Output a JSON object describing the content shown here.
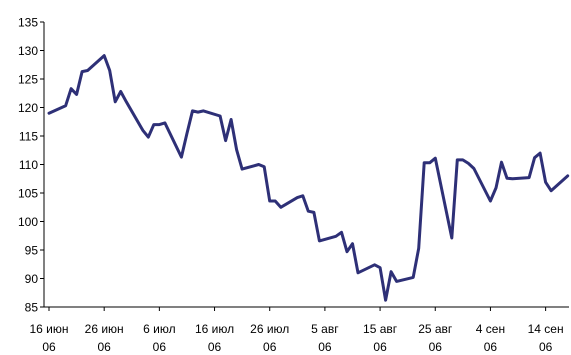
{
  "chart_data": {
    "type": "line",
    "title": "",
    "xlabel": "",
    "ylabel": "",
    "ylim": [
      85,
      135
    ],
    "y_ticks": [
      85,
      90,
      95,
      100,
      105,
      110,
      115,
      120,
      125,
      130,
      135
    ],
    "x_ticks": [
      {
        "date": "2006-06-16",
        "label": [
          "16 июн",
          "06"
        ]
      },
      {
        "date": "2006-06-26",
        "label": [
          "26 июн",
          "06"
        ]
      },
      {
        "date": "2006-07-06",
        "label": [
          "6 июл",
          "06"
        ]
      },
      {
        "date": "2006-07-16",
        "label": [
          "16 июл",
          "06"
        ]
      },
      {
        "date": "2006-07-26",
        "label": [
          "26 июл",
          "06"
        ]
      },
      {
        "date": "2006-08-05",
        "label": [
          "5 авг",
          "06"
        ]
      },
      {
        "date": "2006-08-15",
        "label": [
          "15 авг",
          "06"
        ]
      },
      {
        "date": "2006-08-25",
        "label": [
          "25 авг",
          "06"
        ]
      },
      {
        "date": "2006-09-04",
        "label": [
          "4 сен",
          "06"
        ]
      },
      {
        "date": "2006-09-14",
        "label": [
          "14 сен",
          "06"
        ]
      }
    ],
    "grid": false,
    "legend": "none",
    "color": "#2e3077",
    "series": [
      {
        "x": [
          "2006-06-16",
          "2006-06-19",
          "2006-06-20",
          "2006-06-21",
          "2006-06-22",
          "2006-06-23",
          "2006-06-26",
          "2006-06-27",
          "2006-06-28",
          "2006-06-29",
          "2006-06-30",
          "2006-07-03",
          "2006-07-04",
          "2006-07-05",
          "2006-07-06",
          "2006-07-07",
          "2006-07-10",
          "2006-07-11",
          "2006-07-12",
          "2006-07-13",
          "2006-07-14",
          "2006-07-17",
          "2006-07-18",
          "2006-07-19",
          "2006-07-20",
          "2006-07-21",
          "2006-07-24",
          "2006-07-25",
          "2006-07-26",
          "2006-07-27",
          "2006-07-28",
          "2006-07-31",
          "2006-08-01",
          "2006-08-02",
          "2006-08-03",
          "2006-08-04",
          "2006-08-07",
          "2006-08-08",
          "2006-08-09",
          "2006-08-10",
          "2006-08-11",
          "2006-08-14",
          "2006-08-15",
          "2006-08-16",
          "2006-08-17",
          "2006-08-18",
          "2006-08-21",
          "2006-08-22",
          "2006-08-23",
          "2006-08-24",
          "2006-08-25",
          "2006-08-28",
          "2006-08-29",
          "2006-08-30",
          "2006-08-31",
          "2006-09-01",
          "2006-09-04",
          "2006-09-05",
          "2006-09-06",
          "2006-09-07",
          "2006-09-08",
          "2006-09-11",
          "2006-09-12",
          "2006-09-13",
          "2006-09-14",
          "2006-09-15",
          "2006-09-18"
        ],
        "values": [
          119.0,
          120.3,
          123.3,
          122.3,
          126.3,
          126.5,
          129.1,
          126.5,
          121.0,
          122.8,
          121.0,
          116.0,
          114.8,
          117.0,
          117.0,
          117.3,
          111.3,
          115.4,
          119.4,
          119.2,
          119.4,
          118.5,
          114.2,
          117.9,
          112.6,
          109.2,
          110.0,
          109.6,
          103.6,
          103.6,
          102.5,
          104.2,
          104.5,
          101.8,
          101.6,
          96.6,
          97.4,
          98.1,
          94.7,
          96.1,
          91.0,
          92.4,
          91.9,
          86.2,
          91.2,
          89.5,
          90.2,
          95.3,
          110.3,
          110.3,
          111.1,
          97.1,
          110.8,
          110.8,
          110.2,
          109.3,
          103.6,
          105.9,
          110.4,
          107.6,
          107.5,
          107.7,
          111.2,
          112.0,
          106.9,
          105.4,
          108.0
        ]
      }
    ]
  }
}
